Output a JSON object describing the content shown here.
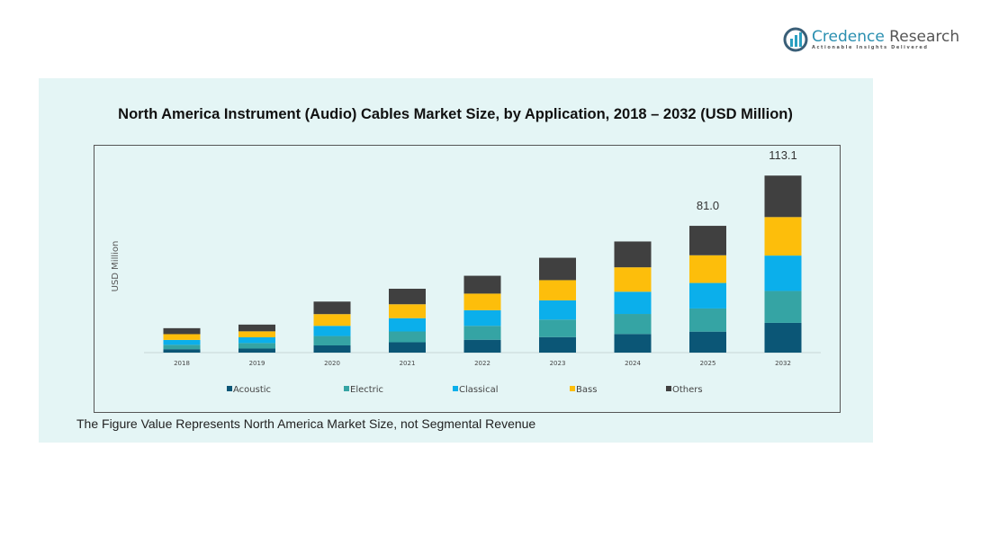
{
  "logo": {
    "name_a": "Credence",
    "name_b": " Research",
    "tagline": "Actionable Insights Delivered"
  },
  "chart_data": {
    "type": "bar",
    "stacked": true,
    "title": "North America Instrument (Audio) Cables Market Size, by Application, 2018 – 2032 (USD Million)",
    "xlabel": "",
    "ylabel": "USD Million",
    "categories": [
      "2018",
      "2019",
      "2020",
      "2021",
      "2022",
      "2023",
      "2024",
      "2025",
      "2032"
    ],
    "series": [
      {
        "name": "Acoustic",
        "color": "#0b5676",
        "values": [
          2.2,
          2.6,
          4.6,
          6.6,
          8.2,
          9.9,
          11.9,
          13.4,
          19.0
        ]
      },
      {
        "name": "Electric",
        "color": "#35a4a4",
        "values": [
          2.8,
          3.5,
          6.0,
          6.9,
          8.9,
          11.2,
          12.8,
          14.8,
          20.4
        ]
      },
      {
        "name": "Classical",
        "color": "#0bafeb",
        "values": [
          3.1,
          3.7,
          6.5,
          8.5,
          10.0,
          12.3,
          14.2,
          16.3,
          22.6
        ]
      },
      {
        "name": "Bass",
        "color": "#fdbe0b",
        "values": [
          3.7,
          3.8,
          7.5,
          8.9,
          10.6,
          12.9,
          15.6,
          17.7,
          24.6
        ]
      },
      {
        "name": "Others",
        "color": "#404040",
        "values": [
          3.8,
          4.3,
          8.0,
          9.9,
          11.4,
          14.3,
          16.5,
          18.8,
          26.5
        ]
      }
    ],
    "data_labels": {
      "2025": "81.0",
      "2032": "113.1"
    },
    "grid": false,
    "legend": "bottom"
  },
  "footnote": "The Figure Value Represents North America Market Size, not Segmental Revenue"
}
